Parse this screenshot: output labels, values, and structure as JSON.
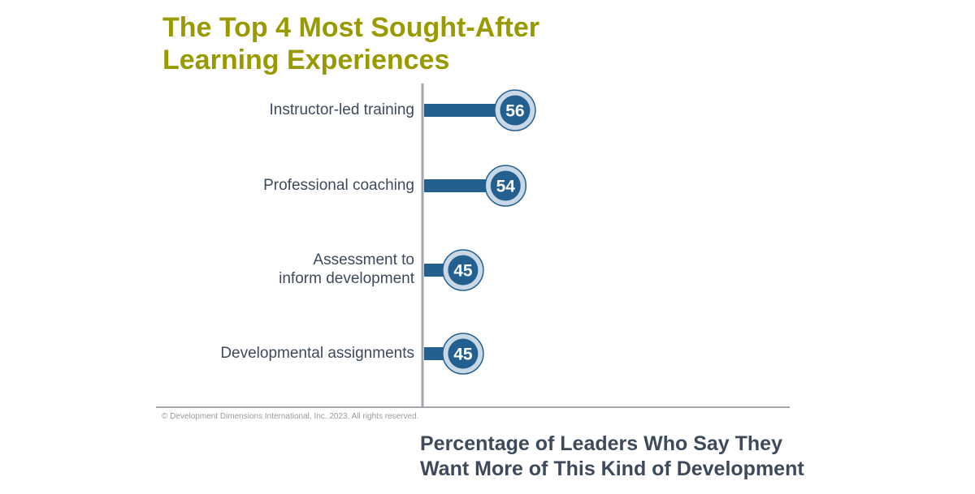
{
  "chart_data": {
    "type": "bar",
    "orientation": "horizontal",
    "title": "The Top 4 Most Sought-After\nLearning Experiences",
    "categories": [
      "Instructor-led training",
      "Professional coaching",
      "Assessment to\ninform development",
      "Developmental assignments"
    ],
    "values": [
      56,
      54,
      45,
      45
    ],
    "xlabel": "Percentage of Leaders Who Say They\nWant More of This Kind of Development",
    "ylabel": "",
    "grid": false,
    "colors": {
      "bar": "#24608f",
      "title": "#999a00",
      "label": "#3d4a5c",
      "marker_ring": "#c9d8e6",
      "axis": "#a4a8ac"
    }
  },
  "footer": {
    "copyright": "© Development Dimensions International, Inc. 2023. All rights reserved."
  }
}
